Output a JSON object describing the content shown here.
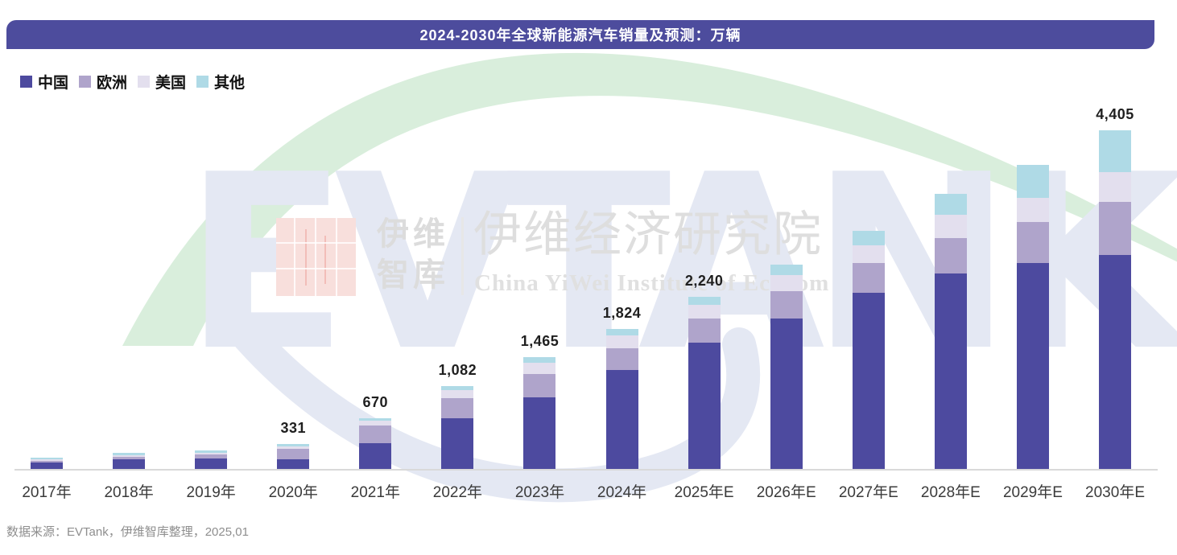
{
  "header": {
    "title": "2024-2030年全球新能源汽车销量及预测：万辆",
    "bg_color": "#4D4C9D"
  },
  "legend": [
    {
      "label": "中国",
      "color": "#4D4A9F"
    },
    {
      "label": "欧洲",
      "color": "#AFA4CB"
    },
    {
      "label": "美国",
      "color": "#E3DFEE"
    },
    {
      "label": "其他",
      "color": "#AFDAE6"
    }
  ],
  "chart_data": {
    "type": "bar",
    "stacked": true,
    "unit": "万辆",
    "title": "2024-2030年全球新能源汽车销量及预测：万辆",
    "categories": [
      "2017年",
      "2018年",
      "2019年",
      "2020年",
      "2021年",
      "2022年",
      "2023年",
      "2024年",
      "2025年E",
      "2026年E",
      "2027年E",
      "2028年E",
      "2029年E",
      "2030年E"
    ],
    "series": [
      {
        "name": "中国",
        "color": "#4D4A9F",
        "values": [
          90,
          132,
          146,
          133,
          342,
          673,
          941,
          1294,
          1647,
          1962,
          2293,
          2547,
          2686,
          2790
        ]
      },
      {
        "name": "欧洲",
        "color": "#AFA4CB",
        "values": [
          28,
          35,
          49,
          138,
          235,
          256,
          304,
          285,
          314,
          358,
          393,
          459,
          532,
          683
        ]
      },
      {
        "name": "美国",
        "color": "#E3DFEE",
        "values": [
          21,
          21,
          28,
          30,
          58,
          104,
          146,
          160,
          175,
          209,
          227,
          300,
          310,
          390
        ]
      },
      {
        "name": "其他",
        "color": "#AFDAE6",
        "values": [
          21,
          31,
          31,
          30,
          35,
          49,
          74,
          85,
          104,
          130,
          191,
          275,
          425,
          542
        ]
      }
    ],
    "totals": [
      160,
      219,
      254,
      331,
      670,
      1082,
      1465,
      1824,
      2240,
      2659,
      3104,
      3581,
      3953,
      4405
    ],
    "total_labels": [
      "",
      "",
      "",
      "331",
      "670",
      "1,082",
      "1,465",
      "1,824",
      "2,240",
      "",
      "",
      "",
      "",
      "4,405"
    ],
    "totals_estimated_for_unlabeled": true,
    "ylim": [
      0,
      4405
    ],
    "grid": false,
    "y_axis_shown": false,
    "legend_position": "top-left"
  },
  "watermark": {
    "giant_text": "EVTANK",
    "brand_cn": "伊维\n智库",
    "institute_cn": "伊维经济研究院",
    "institute_en": "China YiWei Institute of Econom"
  },
  "footer": {
    "source_note": "数据来源：EVTank，伊维智库整理，2025,01"
  }
}
